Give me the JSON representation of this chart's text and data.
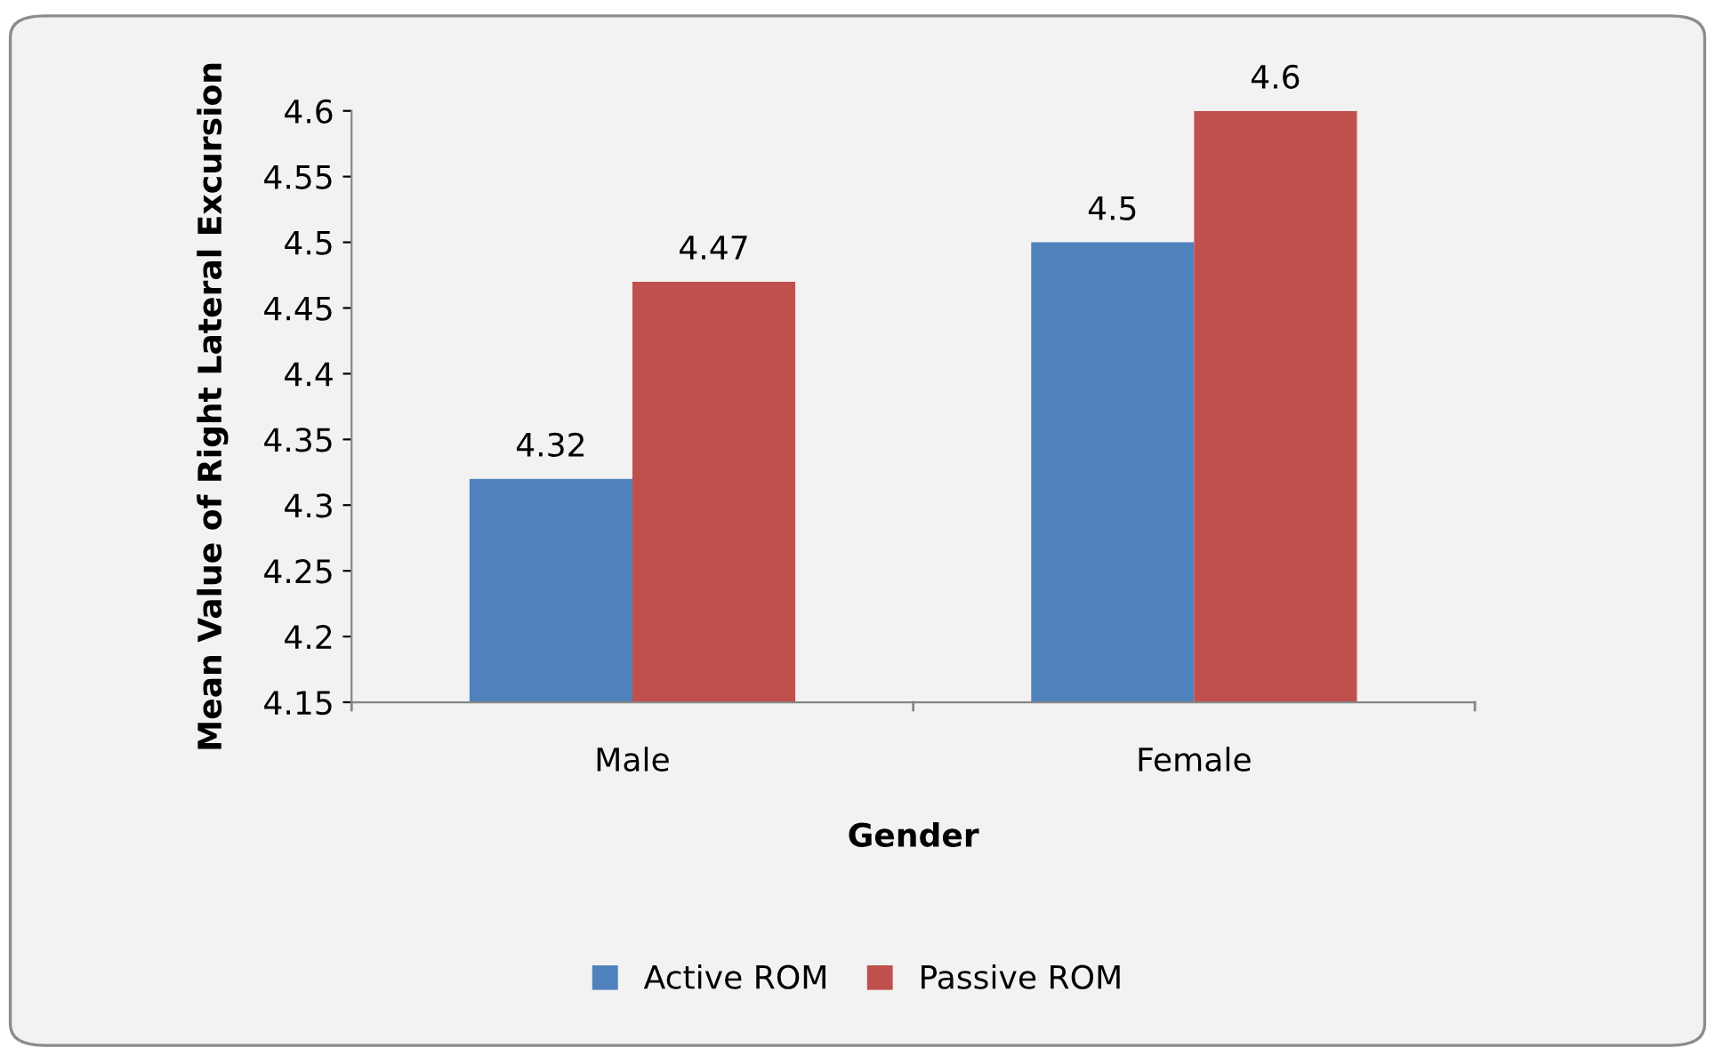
{
  "chart_data": {
    "type": "bar",
    "xlabel": "Gender",
    "ylabel": "Mean Value of Right Lateral Excursion",
    "categories": [
      "Male",
      "Female"
    ],
    "series": [
      {
        "name": "Active ROM",
        "color": "#4f81bd",
        "values": [
          4.32,
          4.5
        ]
      },
      {
        "name": "Passive ROM",
        "color": "#c0504d",
        "values": [
          4.47,
          4.6
        ]
      }
    ],
    "ylim": [
      4.15,
      4.6
    ],
    "yticks": [
      4.15,
      4.2,
      4.25,
      4.3,
      4.35,
      4.4,
      4.45,
      4.5,
      4.55,
      4.6
    ],
    "data_labels": true,
    "grid": false,
    "legend": "bottom"
  }
}
